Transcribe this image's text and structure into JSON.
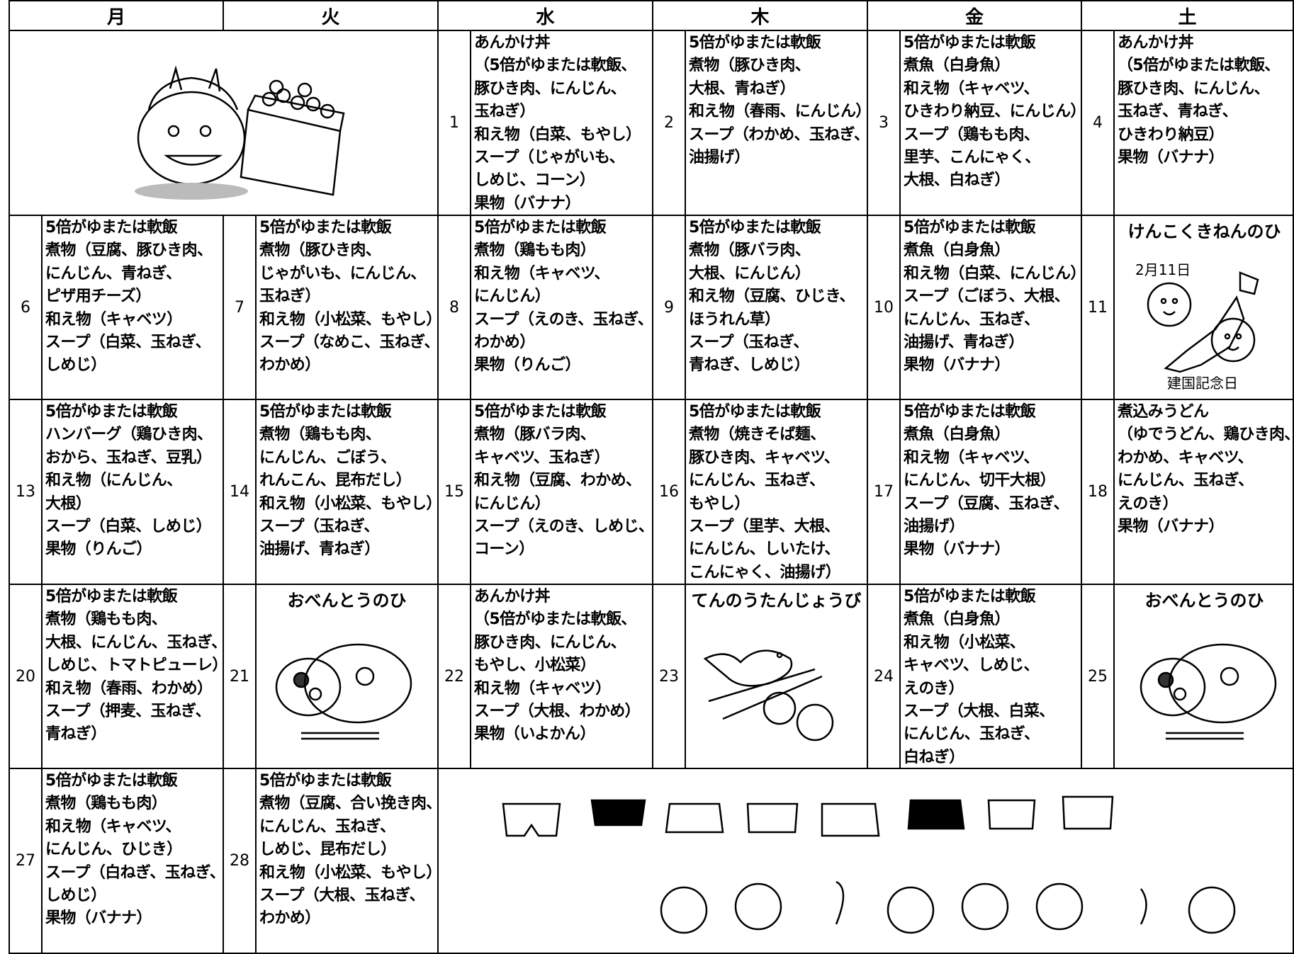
{
  "header": {
    "days": [
      "月",
      "火",
      "水",
      "木",
      "金",
      "土"
    ]
  },
  "weeks": [
    [
      null,
      null,
      {
        "day": "1",
        "lines": [
          "あんかけ丼",
          "（5倍がゆまたは軟飯、",
          "豚ひき肉、にんじん、",
          "玉ねぎ）",
          "和え物（白菜、もやし）",
          "スープ（じゃがいも、",
          "しめじ、コーン）",
          "果物（バナナ）"
        ]
      },
      {
        "day": "2",
        "lines": [
          "5倍がゆまたは軟飯",
          "煮物（豚ひき肉、",
          "大根、青ねぎ）",
          "和え物（春雨、にんじん）",
          "スープ（わかめ、玉ねぎ、",
          "油揚げ）"
        ]
      },
      {
        "day": "3",
        "lines": [
          "5倍がゆまたは軟飯",
          "煮魚（白身魚）",
          "和え物（キャベツ、",
          "ひきわり納豆、にんじん）",
          "スープ（鶏もも肉、",
          "里芋、こんにゃく、",
          "大根、白ねぎ）"
        ]
      },
      {
        "day": "4",
        "lines": [
          "あんかけ丼",
          "（5倍がゆまたは軟飯、",
          "豚ひき肉、にんじん、",
          "玉ねぎ、青ねぎ、",
          "ひきわり納豆）",
          "果物（バナナ）"
        ]
      }
    ],
    [
      {
        "day": "6",
        "lines": [
          "5倍がゆまたは軟飯",
          "煮物（豆腐、豚ひき肉、",
          "にんじん、青ねぎ、",
          "ピザ用チーズ）",
          "和え物（キャベツ）",
          "スープ（白菜、玉ねぎ、",
          "しめじ）"
        ]
      },
      {
        "day": "7",
        "lines": [
          "5倍がゆまたは軟飯",
          "煮物（豚ひき肉、",
          "じゃがいも、にんじん、",
          "玉ねぎ）",
          "和え物（小松菜、もやし）",
          "スープ（なめこ、玉ねぎ、",
          "わかめ）"
        ]
      },
      {
        "day": "8",
        "lines": [
          "5倍がゆまたは軟飯",
          "煮物（鶏もも肉）",
          "和え物（キャベツ、",
          "にんじん）",
          "スープ（えのき、玉ねぎ、",
          "わかめ）",
          "果物（りんご）"
        ]
      },
      {
        "day": "9",
        "lines": [
          "5倍がゆまたは軟飯",
          "煮物（豚バラ肉、",
          "大根、にんじん）",
          "和え物（豆腐、ひじき、",
          "ほうれん草）",
          "スープ（玉ねぎ、",
          "青ねぎ、しめじ）"
        ]
      },
      {
        "day": "10",
        "lines": [
          "5倍がゆまたは軟飯",
          "煮魚（白身魚）",
          "和え物（白菜、にんじん）",
          "スープ（ごぼう、大根、",
          "にんじん、玉ねぎ、",
          "油揚げ、青ねぎ）",
          "果物（バナナ）"
        ]
      },
      {
        "day": "11",
        "title": "けんこくきねんのひ",
        "notes": [
          "2月11日",
          "建国記念日"
        ]
      }
    ],
    [
      {
        "day": "13",
        "lines": [
          "5倍がゆまたは軟飯",
          "ハンバーグ（鶏ひき肉、",
          "おから、玉ねぎ、豆乳）",
          "和え物（にんじん、",
          "大根）",
          "スープ（白菜、しめじ）",
          "果物（りんご）"
        ]
      },
      {
        "day": "14",
        "lines": [
          "5倍がゆまたは軟飯",
          "煮物（鶏もも肉、",
          "にんじん、ごぼう、",
          "れんこん、昆布だし）",
          "和え物（小松菜、もやし）",
          "スープ（玉ねぎ、",
          "油揚げ、青ねぎ）"
        ]
      },
      {
        "day": "15",
        "lines": [
          "5倍がゆまたは軟飯",
          "煮物（豚バラ肉、",
          "キャベツ、玉ねぎ）",
          "和え物（豆腐、わかめ、",
          "にんじん）",
          "スープ（えのき、しめじ、",
          "コーン）"
        ]
      },
      {
        "day": "16",
        "lines": [
          "5倍がゆまたは軟飯",
          "煮物（焼きそば麺、",
          "豚ひき肉、キャベツ、",
          "にんじん、玉ねぎ、",
          "もやし）",
          "スープ（里芋、大根、",
          "にんじん、しいたけ、",
          "こんにゃく、油揚げ）"
        ]
      },
      {
        "day": "17",
        "lines": [
          "5倍がゆまたは軟飯",
          "煮魚（白身魚）",
          "和え物（キャベツ、",
          "にんじん、切干大根）",
          "スープ（豆腐、玉ねぎ、",
          "油揚げ）",
          "果物（バナナ）"
        ]
      },
      {
        "day": "18",
        "lines": [
          "煮込みうどん",
          "（ゆでうどん、鶏ひき肉、",
          "わかめ、キャベツ、",
          "にんじん、玉ねぎ、",
          "えのき）",
          "果物（バナナ）"
        ]
      }
    ],
    [
      {
        "day": "20",
        "lines": [
          "5倍がゆまたは軟飯",
          "煮物（鶏もも肉、",
          "大根、にんじん、玉ねぎ、",
          "しめじ、トマトピューレ）",
          "和え物（春雨、わかめ）",
          "スープ（押麦、玉ねぎ、",
          "青ねぎ）"
        ]
      },
      {
        "day": "21",
        "title": "おべんとうのひ"
      },
      {
        "day": "22",
        "lines": [
          "あんかけ丼",
          "（5倍がゆまたは軟飯、",
          "豚ひき肉、にんじん、",
          "もやし、小松菜）",
          "和え物（キャベツ）",
          "スープ（大根、わかめ）",
          "果物（いよかん）"
        ]
      },
      {
        "day": "23",
        "title": "てんのうたんじょうび"
      },
      {
        "day": "24",
        "lines": [
          "5倍がゆまたは軟飯",
          "煮魚（白身魚）",
          "和え物（小松菜、",
          "キャベツ、しめじ、",
          "えのき）",
          "スープ（大根、白菜、",
          "にんじん、玉ねぎ、",
          "白ねぎ）"
        ]
      },
      {
        "day": "25",
        "title": "おべんとうのひ"
      }
    ],
    [
      {
        "day": "27",
        "lines": [
          "5倍がゆまたは軟飯",
          "煮物（鶏もも肉）",
          "和え物（キャベツ、",
          "にんじん、ひじき）",
          "スープ（白ねぎ、玉ねぎ、",
          "しめじ）",
          "果物（バナナ）"
        ]
      },
      {
        "day": "28",
        "lines": [
          "5倍がゆまたは軟飯",
          "煮物（豆腐、合い挽き肉、",
          "にんじん、玉ねぎ、",
          "しめじ、昆布だし）",
          "和え物（小松菜、もやし）",
          "スープ（大根、玉ねぎ、",
          "わかめ）"
        ]
      },
      null,
      null,
      null,
      null
    ]
  ]
}
